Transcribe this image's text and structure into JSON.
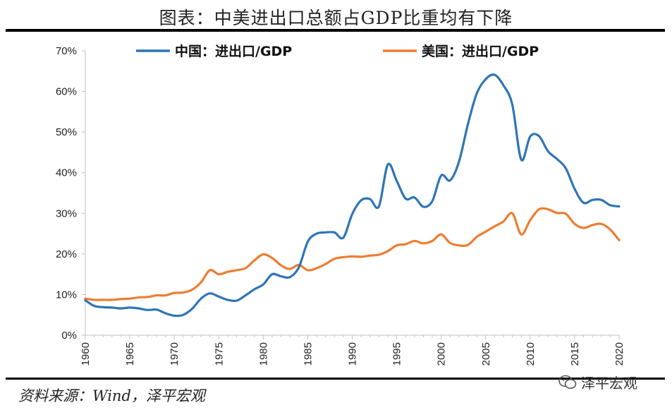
{
  "title": "图表：中美进出口总额占GDP比重均有下降",
  "source": "资料来源：Wind，泽平宏观",
  "watermark": {
    "icon": "wechat-icon",
    "text": "泽平宏观"
  },
  "colors": {
    "china": "#2E75B6",
    "usa": "#ED7D31",
    "axis": "#BFBFBF"
  },
  "chart_data": {
    "type": "line",
    "title": "",
    "xlabel": "",
    "ylabel": "",
    "xlim": [
      1960,
      2020
    ],
    "ylim": [
      0,
      70
    ],
    "yticks": [
      "0%",
      "10%",
      "20%",
      "30%",
      "40%",
      "50%",
      "60%",
      "70%"
    ],
    "xticks": [
      "1960",
      "1965",
      "1970",
      "1975",
      "1980",
      "1985",
      "1990",
      "1995",
      "2000",
      "2005",
      "2010",
      "2015",
      "2020"
    ],
    "grid": false,
    "legend": "top",
    "series": [
      {
        "name": "中国：进出口/GDP",
        "color": "#2E75B6",
        "x": [
          1960,
          1961,
          1962,
          1963,
          1964,
          1965,
          1966,
          1967,
          1968,
          1969,
          1970,
          1971,
          1972,
          1973,
          1974,
          1975,
          1976,
          1977,
          1978,
          1979,
          1980,
          1981,
          1982,
          1983,
          1984,
          1985,
          1986,
          1987,
          1988,
          1989,
          1990,
          1991,
          1992,
          1993,
          1994,
          1995,
          1996,
          1997,
          1998,
          1999,
          2000,
          2001,
          2002,
          2003,
          2004,
          2005,
          2006,
          2007,
          2008,
          2009,
          2010,
          2011,
          2012,
          2013,
          2014,
          2015,
          2016,
          2017,
          2018,
          2019,
          2020
        ],
        "values": [
          8.6,
          7.2,
          6.9,
          6.8,
          6.6,
          6.8,
          6.6,
          6.2,
          6.3,
          5.4,
          4.8,
          5.0,
          6.5,
          9.0,
          10.3,
          9.5,
          8.7,
          8.5,
          9.8,
          11.3,
          12.5,
          15.0,
          14.5,
          14.3,
          16.7,
          23.0,
          25.0,
          25.3,
          25.3,
          24.0,
          29.8,
          33.2,
          33.5,
          31.7,
          42.0,
          38.0,
          33.6,
          33.9,
          31.6,
          33.0,
          39.3,
          38.1,
          42.7,
          51.9,
          59.5,
          63.0,
          64.1,
          61.5,
          56.7,
          43.2,
          48.9,
          49.0,
          45.3,
          43.4,
          41.1,
          36.0,
          32.6,
          33.3,
          33.3,
          32.0,
          31.7
        ]
      },
      {
        "name": "美国：进出口/GDP",
        "color": "#ED7D31",
        "x": [
          1960,
          1961,
          1962,
          1963,
          1964,
          1965,
          1966,
          1967,
          1968,
          1969,
          1970,
          1971,
          1972,
          1973,
          1974,
          1975,
          1976,
          1977,
          1978,
          1979,
          1980,
          1981,
          1982,
          1983,
          1984,
          1985,
          1986,
          1987,
          1988,
          1989,
          1990,
          1991,
          1992,
          1993,
          1994,
          1995,
          1996,
          1997,
          1998,
          1999,
          2000,
          2001,
          2002,
          2003,
          2004,
          2005,
          2006,
          2007,
          2008,
          2009,
          2010,
          2011,
          2012,
          2013,
          2014,
          2015,
          2016,
          2017,
          2018,
          2019,
          2020
        ],
        "values": [
          9.0,
          8.7,
          8.7,
          8.7,
          8.9,
          9.0,
          9.3,
          9.4,
          9.8,
          9.8,
          10.4,
          10.5,
          11.2,
          13.0,
          16.0,
          15.0,
          15.6,
          16.0,
          16.5,
          18.4,
          19.9,
          19.0,
          17.2,
          16.3,
          17.3,
          16.0,
          16.5,
          17.5,
          18.8,
          19.2,
          19.4,
          19.3,
          19.6,
          19.8,
          20.7,
          22.1,
          22.4,
          23.2,
          22.6,
          23.2,
          24.8,
          22.7,
          22.1,
          22.2,
          24.2,
          25.5,
          26.8,
          28.0,
          30.0,
          24.8,
          28.3,
          31.0,
          31.0,
          30.1,
          29.9,
          27.4,
          26.4,
          27.1,
          27.4,
          26.0,
          23.4
        ]
      }
    ]
  }
}
